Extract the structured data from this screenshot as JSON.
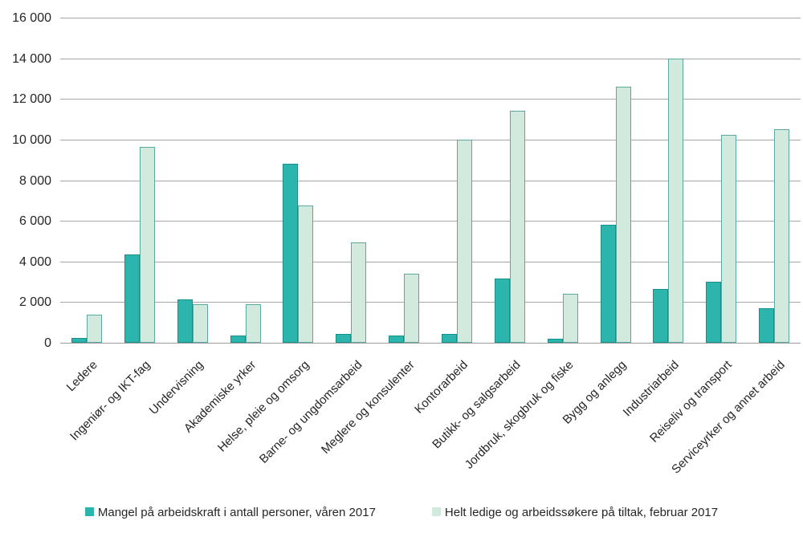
{
  "chart_data": {
    "type": "bar",
    "title": "",
    "xlabel": "",
    "ylabel": "",
    "categories": [
      "Ledere",
      "Ingeniør- og IKT-fag",
      "Undervisning",
      "Akademiske yrker",
      "Helse, pleie og omsorg",
      "Barne- og ungdomsarbeid",
      "Meglere og konsulenter",
      "Kontorarbeid",
      "Butikk- og salgsarbeid",
      "Jordbruk, skogbruk og fiske",
      "Bygg og anlegg",
      "Industriarbeid",
      "Reiseliv og transport",
      "Serviceyrker og annet arbeid"
    ],
    "series": [
      {
        "name": "Mangel på arbeidskraft i antall personer, våren 2017",
        "color": "#2BB5AC",
        "border_color": "#17908A",
        "values": [
          250,
          4350,
          2150,
          350,
          8800,
          450,
          350,
          450,
          3150,
          200,
          5800,
          2650,
          3000,
          1700
        ]
      },
      {
        "name": "Helt ledige og arbeidssøkere på tiltak, februar 2017",
        "color": "#D2E9DD",
        "border_color": "#5AA89F",
        "values": [
          1400,
          9650,
          1900,
          1900,
          6750,
          4950,
          3400,
          10000,
          11400,
          2400,
          12600,
          14000,
          10250,
          10500
        ]
      }
    ],
    "ylim": [
      0,
      16000
    ],
    "ytick_step": 2000,
    "ytick_labels": [
      "0",
      "2 000",
      "4 000",
      "6 000",
      "8 000",
      "10 000",
      "12 000",
      "14 000",
      "16 000"
    ],
    "grid": true,
    "gridline_color": "#A7A7A7",
    "legend_position": "bottom"
  }
}
